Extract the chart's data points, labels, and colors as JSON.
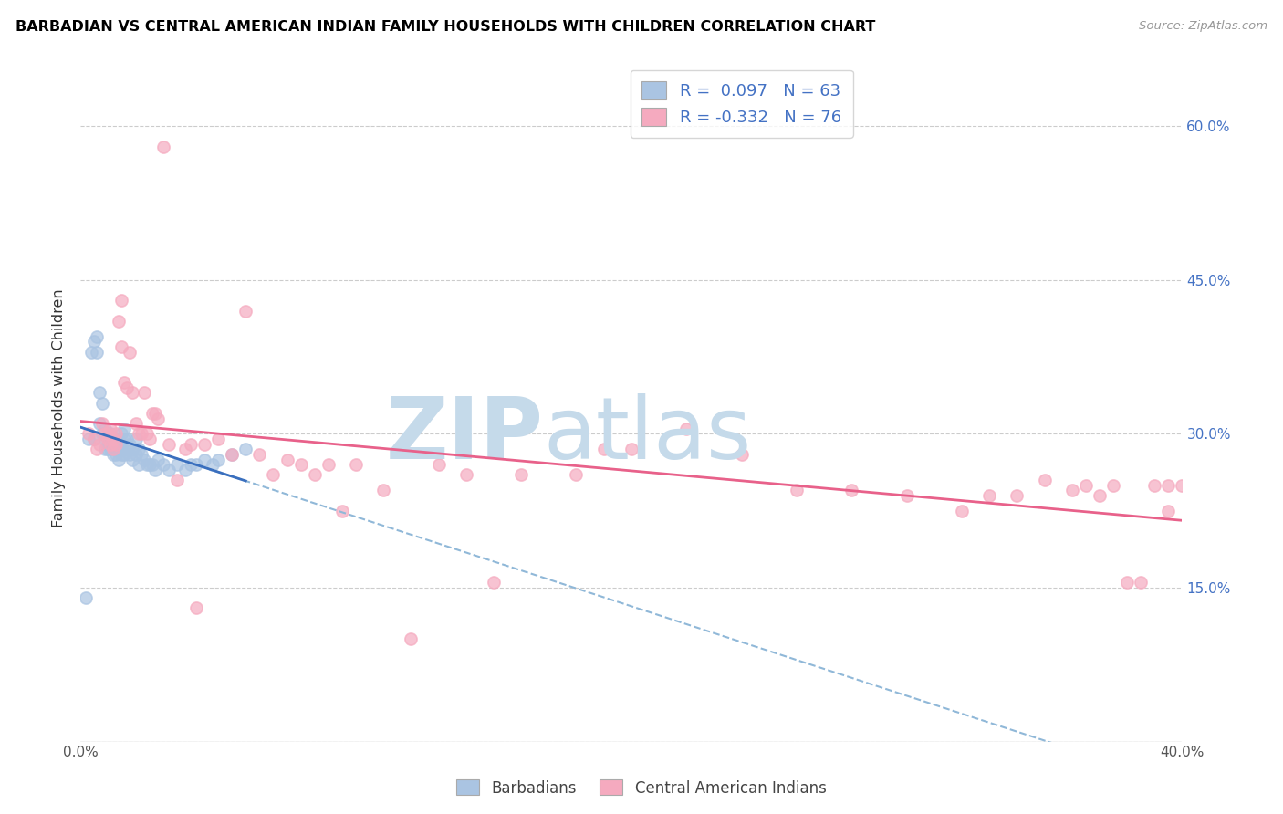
{
  "title": "BARBADIAN VS CENTRAL AMERICAN INDIAN FAMILY HOUSEHOLDS WITH CHILDREN CORRELATION CHART",
  "source": "Source: ZipAtlas.com",
  "ylabel": "Family Households with Children",
  "x_min": 0.0,
  "x_max": 0.4,
  "y_min": 0.0,
  "y_max": 0.65,
  "x_ticks": [
    0.0,
    0.05,
    0.1,
    0.15,
    0.2,
    0.25,
    0.3,
    0.35,
    0.4
  ],
  "y_ticks": [
    0.0,
    0.15,
    0.3,
    0.45,
    0.6
  ],
  "y_tick_labels_right": [
    "",
    "15.0%",
    "30.0%",
    "45.0%",
    "60.0%"
  ],
  "barbadian_R": 0.097,
  "barbadian_N": 63,
  "central_american_R": -0.332,
  "central_american_N": 76,
  "barbadian_color": "#aac4e2",
  "central_american_color": "#f5aabf",
  "barbadian_line_color": "#3a6fbe",
  "central_american_line_color": "#e8618a",
  "barbadian_dash_color": "#90b8d8",
  "legend_text_color": "#4472c4",
  "barbadian_x": [
    0.002,
    0.003,
    0.004,
    0.005,
    0.005,
    0.006,
    0.006,
    0.007,
    0.007,
    0.008,
    0.008,
    0.009,
    0.009,
    0.009,
    0.01,
    0.01,
    0.01,
    0.01,
    0.011,
    0.011,
    0.011,
    0.012,
    0.012,
    0.012,
    0.013,
    0.013,
    0.014,
    0.014,
    0.014,
    0.015,
    0.015,
    0.015,
    0.016,
    0.016,
    0.016,
    0.017,
    0.017,
    0.018,
    0.018,
    0.019,
    0.019,
    0.02,
    0.02,
    0.021,
    0.021,
    0.022,
    0.023,
    0.024,
    0.025,
    0.026,
    0.027,
    0.028,
    0.03,
    0.032,
    0.035,
    0.038,
    0.04,
    0.042,
    0.045,
    0.048,
    0.05,
    0.055,
    0.06
  ],
  "barbadian_y": [
    0.14,
    0.295,
    0.38,
    0.39,
    0.295,
    0.395,
    0.38,
    0.34,
    0.31,
    0.33,
    0.3,
    0.305,
    0.295,
    0.285,
    0.3,
    0.295,
    0.29,
    0.285,
    0.3,
    0.295,
    0.285,
    0.295,
    0.285,
    0.28,
    0.29,
    0.28,
    0.295,
    0.285,
    0.275,
    0.3,
    0.29,
    0.28,
    0.305,
    0.295,
    0.28,
    0.295,
    0.285,
    0.29,
    0.28,
    0.285,
    0.275,
    0.295,
    0.28,
    0.285,
    0.27,
    0.28,
    0.275,
    0.27,
    0.27,
    0.27,
    0.265,
    0.275,
    0.27,
    0.265,
    0.27,
    0.265,
    0.27,
    0.27,
    0.275,
    0.27,
    0.275,
    0.28,
    0.285
  ],
  "central_american_x": [
    0.003,
    0.005,
    0.006,
    0.007,
    0.008,
    0.009,
    0.01,
    0.01,
    0.011,
    0.011,
    0.012,
    0.012,
    0.013,
    0.013,
    0.014,
    0.015,
    0.015,
    0.016,
    0.017,
    0.018,
    0.019,
    0.02,
    0.021,
    0.022,
    0.023,
    0.024,
    0.025,
    0.026,
    0.027,
    0.028,
    0.03,
    0.032,
    0.035,
    0.038,
    0.04,
    0.042,
    0.045,
    0.05,
    0.055,
    0.06,
    0.065,
    0.07,
    0.075,
    0.08,
    0.085,
    0.09,
    0.095,
    0.1,
    0.11,
    0.12,
    0.13,
    0.14,
    0.15,
    0.16,
    0.18,
    0.19,
    0.2,
    0.22,
    0.24,
    0.26,
    0.28,
    0.3,
    0.32,
    0.33,
    0.34,
    0.35,
    0.36,
    0.37,
    0.38,
    0.39,
    0.395,
    0.4,
    0.395,
    0.385,
    0.375,
    0.365
  ],
  "central_american_y": [
    0.3,
    0.295,
    0.285,
    0.29,
    0.31,
    0.3,
    0.3,
    0.295,
    0.305,
    0.29,
    0.295,
    0.285,
    0.3,
    0.29,
    0.41,
    0.43,
    0.385,
    0.35,
    0.345,
    0.38,
    0.34,
    0.31,
    0.3,
    0.3,
    0.34,
    0.3,
    0.295,
    0.32,
    0.32,
    0.315,
    0.58,
    0.29,
    0.255,
    0.285,
    0.29,
    0.13,
    0.29,
    0.295,
    0.28,
    0.42,
    0.28,
    0.26,
    0.275,
    0.27,
    0.26,
    0.27,
    0.225,
    0.27,
    0.245,
    0.1,
    0.27,
    0.26,
    0.155,
    0.26,
    0.26,
    0.285,
    0.285,
    0.305,
    0.28,
    0.245,
    0.245,
    0.24,
    0.225,
    0.24,
    0.24,
    0.255,
    0.245,
    0.24,
    0.155,
    0.25,
    0.225,
    0.25,
    0.25,
    0.155,
    0.25,
    0.25
  ]
}
